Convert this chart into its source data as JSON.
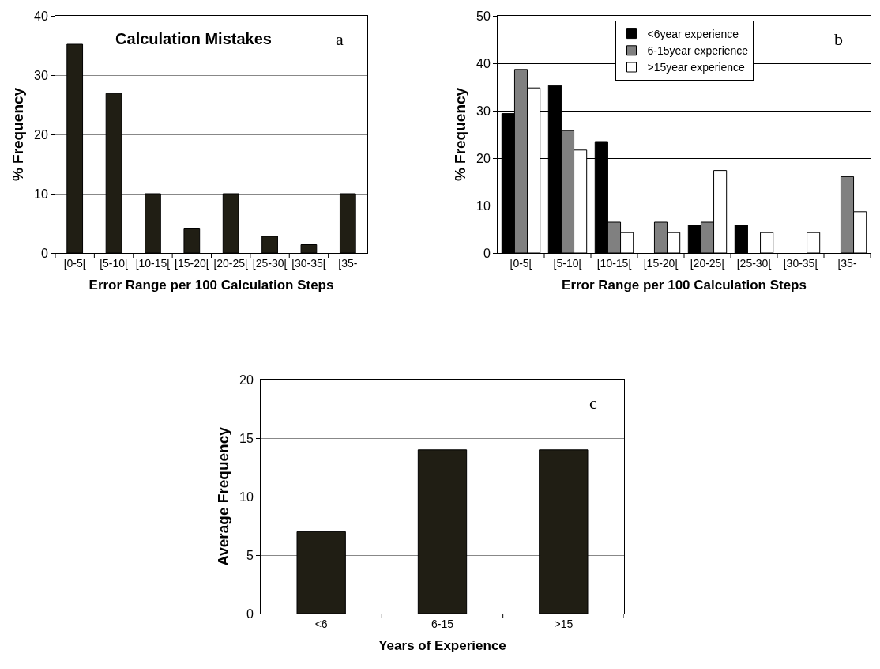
{
  "chart_data": [
    {
      "type": "bar",
      "title": "Calculation Mistakes",
      "xlabel": "Error Range per 100 Calculation Steps",
      "ylabel": "% Frequency",
      "annotations": [
        "a"
      ],
      "categories": [
        "[0-5[",
        "[5-10[",
        "[10-15[",
        "[15-20[",
        "[20-25[",
        "[25-30[",
        "[30-35[",
        "[35-"
      ],
      "values": [
        35.2,
        26.9,
        10,
        4.2,
        10,
        2.8,
        1.4,
        10
      ],
      "color": "#201e14",
      "ylim": [
        0,
        40
      ],
      "yticks": [
        0,
        10,
        20,
        30,
        40
      ],
      "grid": "y",
      "legend": false
    },
    {
      "type": "bar",
      "xlabel": "Error Range per 100 Calculation Steps",
      "ylabel": "% Frequency",
      "annotations": [
        "b"
      ],
      "categories": [
        "[0-5[",
        "[5-10[",
        "[10-15[",
        "[15-20[",
        "[20-25[",
        "[25-30[",
        "[30-35[",
        "[35-"
      ],
      "series": [
        {
          "name": "<6year experience",
          "color": "#000000",
          "values": [
            29.4,
            35.3,
            23.5,
            0,
            5.9,
            5.9,
            0,
            0
          ]
        },
        {
          "name": "6-15year experience",
          "color": "#808080",
          "values": [
            38.7,
            25.8,
            6.5,
            6.5,
            6.5,
            0,
            0,
            16.1
          ]
        },
        {
          "name": ">15year experience",
          "color": "#ffffff",
          "values": [
            34.8,
            21.7,
            4.3,
            4.3,
            17.4,
            4.3,
            4.3,
            8.7
          ]
        }
      ],
      "ylim": [
        0,
        50
      ],
      "yticks": [
        0,
        10,
        20,
        30,
        40,
        50
      ],
      "grid": "y",
      "legend": "top"
    },
    {
      "type": "bar",
      "xlabel": "Years of Experience",
      "ylabel": "Average Frequency",
      "annotations": [
        "c"
      ],
      "categories": [
        "<6",
        "6-15",
        ">15"
      ],
      "values": [
        7,
        14,
        14
      ],
      "color": "#201e14",
      "ylim": [
        0,
        20
      ],
      "yticks": [
        0,
        5,
        10,
        15,
        20
      ],
      "grid": "y",
      "legend": false
    }
  ]
}
